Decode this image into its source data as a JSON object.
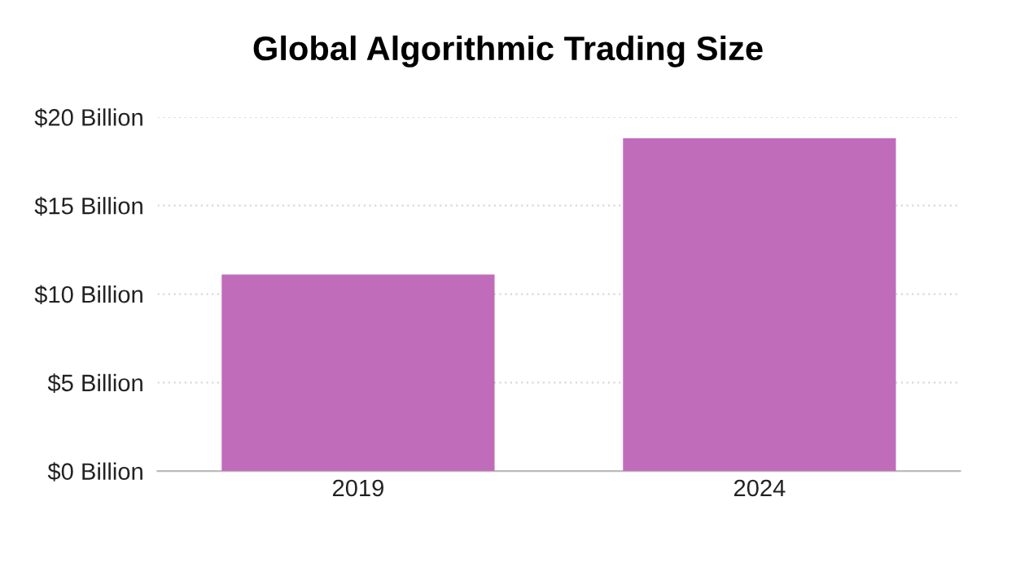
{
  "chart_data": {
    "type": "bar",
    "title": "Global Algorithmic Trading Size",
    "categories": [
      "2019",
      "2024"
    ],
    "values": [
      11.1,
      18.8
    ],
    "color": "#c06cbb",
    "ylim": [
      0,
      20
    ],
    "yticks": [
      {
        "value": 0,
        "label": "$0 Billion"
      },
      {
        "value": 5,
        "label": "$5 Billion"
      },
      {
        "value": 10,
        "label": "$10 Billion"
      },
      {
        "value": 15,
        "label": "$15 Billion"
      },
      {
        "value": 20,
        "label": "$20 Billion"
      }
    ],
    "grid": "y"
  }
}
